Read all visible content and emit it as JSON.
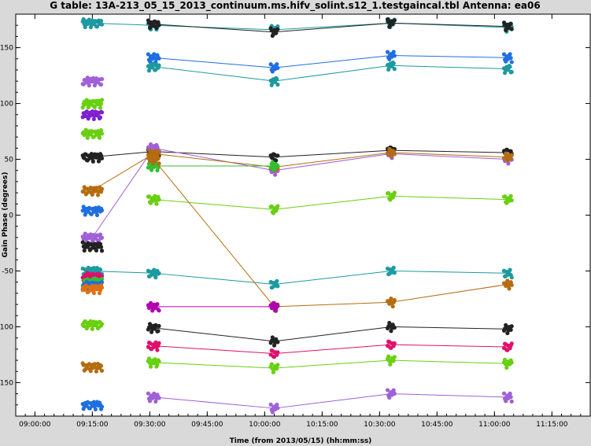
{
  "chart_data": {
    "type": "scatter",
    "title": "G table: 13A-213_05_15_2013_continuum.ms.hifv_solint.s12_1.testgaincal.tbl   Antenna: ea06",
    "xlabel": "Time (from 2013/05/15) (hh:mm:ss)",
    "ylabel": "Gain Phase (degrees)",
    "xlim": [
      "08:55:00",
      "11:25:00"
    ],
    "ylim": [
      -180,
      180
    ],
    "x_ticks": [
      "09:00:00",
      "09:15:00",
      "09:30:00",
      "09:45:00",
      "10:00:00",
      "10:15:00",
      "10:30:00",
      "10:45:00",
      "11:00:00",
      "11:15:00"
    ],
    "y_ticks": [
      150,
      100,
      50,
      0,
      -50,
      -100,
      -150
    ],
    "grid": false,
    "legend": "none",
    "clusters": {
      "times": [
        "09:15:00",
        "09:31:00",
        "10:02:30",
        "10:33:00",
        "11:03:30"
      ],
      "half_widths_min": [
        2.5,
        1.4,
        0.9,
        0.9,
        1.0
      ]
    },
    "series": [
      {
        "color": "#1c9aa0",
        "values": [
          172,
          170,
          166,
          172,
          168
        ]
      },
      {
        "color": "#222222",
        "values": [
          null,
          171,
          164,
          172,
          169
        ]
      },
      {
        "color": "#1f6fe0",
        "values": [
          null,
          141,
          132,
          143,
          141
        ]
      },
      {
        "color": "#1c9aa0",
        "values": [
          null,
          133,
          120,
          134,
          131
        ]
      },
      {
        "color": "#a060d8",
        "values": [
          120,
          null,
          null,
          null,
          null
        ]
      },
      {
        "color": "#68d010",
        "values": [
          100,
          null,
          null,
          null,
          null
        ]
      },
      {
        "color": "#8020d0",
        "values": [
          90,
          null,
          null,
          null,
          null
        ]
      },
      {
        "color": "#68d010",
        "values": [
          73,
          null,
          null,
          null,
          null
        ]
      },
      {
        "color": "#222222",
        "values": [
          52,
          57,
          52,
          58,
          56
        ]
      },
      {
        "color": "#a060d8",
        "values": [
          -20,
          60,
          40,
          55,
          50
        ]
      },
      {
        "color": "#b56c10",
        "values": [
          22,
          55,
          43,
          56,
          52
        ]
      },
      {
        "color": "#30c030",
        "values": [
          null,
          44,
          44,
          null,
          null
        ]
      },
      {
        "color": "#1f6fe0",
        "values": [
          4,
          null,
          null,
          null,
          null
        ]
      },
      {
        "color": "#68d010",
        "values": [
          null,
          14,
          5,
          17,
          14
        ]
      },
      {
        "color": "#222222",
        "values": [
          -28,
          null,
          null,
          null,
          null
        ]
      },
      {
        "color": "#1c9aa0",
        "values": [
          -50,
          -52,
          -62,
          -50,
          -52
        ]
      },
      {
        "color": "#e0106a",
        "values": [
          -55,
          null,
          null,
          null,
          null
        ]
      },
      {
        "color": "#30c030",
        "values": [
          -60,
          null,
          null,
          null,
          null
        ]
      },
      {
        "color": "#1f6fe0",
        "values": [
          -63,
          null,
          null,
          null,
          null
        ]
      },
      {
        "color": "#e07010",
        "values": [
          -66,
          null,
          null,
          null,
          null
        ]
      },
      {
        "color": "#b56c10",
        "values": [
          null,
          50,
          -82,
          -78,
          -62
        ]
      },
      {
        "color": "#b000b0",
        "values": [
          null,
          -82,
          -82,
          null,
          null
        ]
      },
      {
        "color": "#68d010",
        "values": [
          -98,
          null,
          null,
          null,
          null
        ]
      },
      {
        "color": "#222222",
        "values": [
          null,
          -101,
          -113,
          -100,
          -102
        ]
      },
      {
        "color": "#e0106a",
        "values": [
          null,
          -117,
          -124,
          -116,
          -118
        ]
      },
      {
        "color": "#68d010",
        "values": [
          null,
          -132,
          -137,
          -130,
          -133
        ]
      },
      {
        "color": "#b56c10",
        "values": [
          -136,
          null,
          null,
          null,
          null
        ]
      },
      {
        "color": "#a060d8",
        "values": [
          null,
          -163,
          -173,
          -160,
          -163
        ]
      },
      {
        "color": "#1f6fe0",
        "values": [
          -170,
          null,
          null,
          null,
          null
        ]
      }
    ]
  }
}
